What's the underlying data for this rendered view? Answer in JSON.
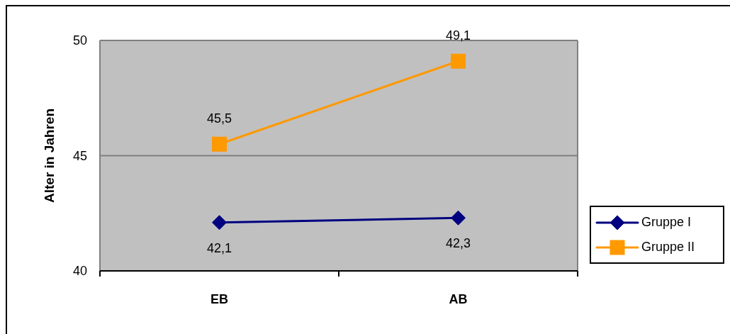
{
  "chart_data": {
    "type": "line",
    "ylabel": "Alter in Jahren",
    "categories": [
      "EB",
      "AB"
    ],
    "series": [
      {
        "name": "Gruppe I",
        "color": "#000080",
        "values": [
          42.1,
          42.3
        ],
        "marker": "diamond",
        "value_labels": [
          "42,1",
          "42,3"
        ]
      },
      {
        "name": "Gruppe II",
        "color": "#ff9900",
        "values": [
          45.5,
          49.1
        ],
        "marker": "square",
        "value_labels": [
          "45,5",
          "49,1"
        ]
      }
    ],
    "ylim": [
      40,
      50
    ],
    "yticks": [
      40,
      45,
      50
    ],
    "grid": "y",
    "legend": "right"
  }
}
